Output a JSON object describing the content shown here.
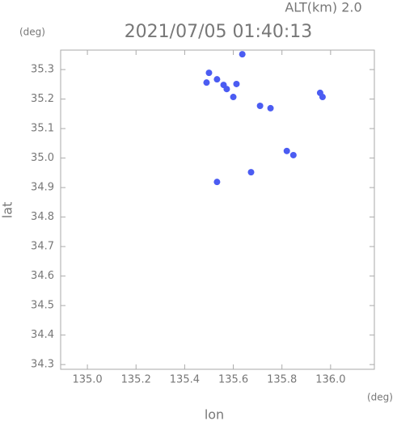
{
  "chart_data": {
    "type": "scatter",
    "title": "2021/07/05 01:40:13",
    "subtitle": "ALT(km) 2.0",
    "x_label": "lon",
    "y_label": "lat",
    "x_unit": "(deg)",
    "y_unit": "(deg)",
    "color": "#4b5cf2",
    "x": [
      135.637,
      135.5,
      135.49,
      135.533,
      135.56,
      135.573,
      135.613,
      135.6,
      135.71,
      135.753,
      135.957,
      135.967,
      135.82,
      135.847,
      135.673,
      135.533
    ],
    "values": [
      35.352,
      35.289,
      35.256,
      35.267,
      35.248,
      35.234,
      35.251,
      35.207,
      35.177,
      35.169,
      35.221,
      35.207,
      35.024,
      35.01,
      34.952,
      34.919
    ],
    "xlim": [
      134.89,
      136.18
    ],
    "ylim": [
      34.284,
      35.366
    ],
    "xticks": [
      {
        "value": 135,
        "label": "135.0"
      },
      135.2,
      135.4,
      135.6,
      135.8,
      {
        "value": 136,
        "label": "136.0"
      }
    ],
    "yticks": [
      34.3,
      34.4,
      34.5,
      34.6,
      34.7,
      34.8,
      34.9,
      {
        "value": 35,
        "label": "35.0"
      },
      35.1,
      35.2,
      35.3
    ]
  }
}
